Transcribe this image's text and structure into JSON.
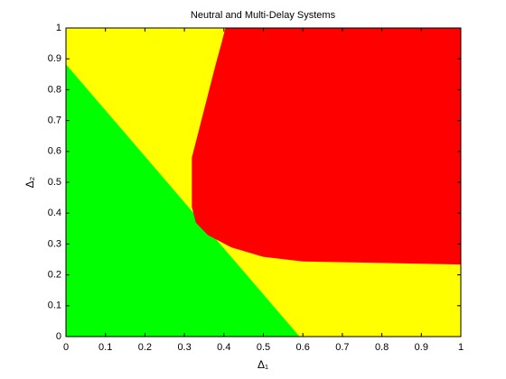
{
  "chart_data": {
    "type": "region",
    "title": "Neutral and Multi-Delay Systems",
    "x_label": "Δ₁",
    "y_label": "Δ₂",
    "xlim": [
      0,
      1
    ],
    "ylim": [
      0,
      1
    ],
    "xticks": [
      0,
      0.1,
      0.2,
      0.3,
      0.4,
      0.5,
      0.6,
      0.7,
      0.8,
      0.9,
      1
    ],
    "yticks": [
      0,
      0.1,
      0.2,
      0.3,
      0.4,
      0.5,
      0.6,
      0.7,
      0.8,
      0.9,
      1
    ],
    "series": [
      {
        "color": "#ffff00",
        "x": [
          0,
          1,
          1,
          0
        ],
        "y": [
          0,
          0,
          1,
          1
        ]
      },
      {
        "color": "#00ff00",
        "x": [
          0,
          0,
          0.59
        ],
        "y": [
          0,
          0.88,
          0
        ]
      },
      {
        "color": "#ff0000",
        "x": [
          0.405,
          1,
          1,
          0.8,
          0.6,
          0.5,
          0.42,
          0.36,
          0.33,
          0.32,
          0.32,
          0.34,
          0.36,
          0.38,
          0.395
        ],
        "y": [
          1,
          1,
          0.235,
          0.24,
          0.245,
          0.26,
          0.29,
          0.33,
          0.37,
          0.42,
          0.58,
          0.68,
          0.78,
          0.88,
          0.95
        ]
      }
    ]
  }
}
